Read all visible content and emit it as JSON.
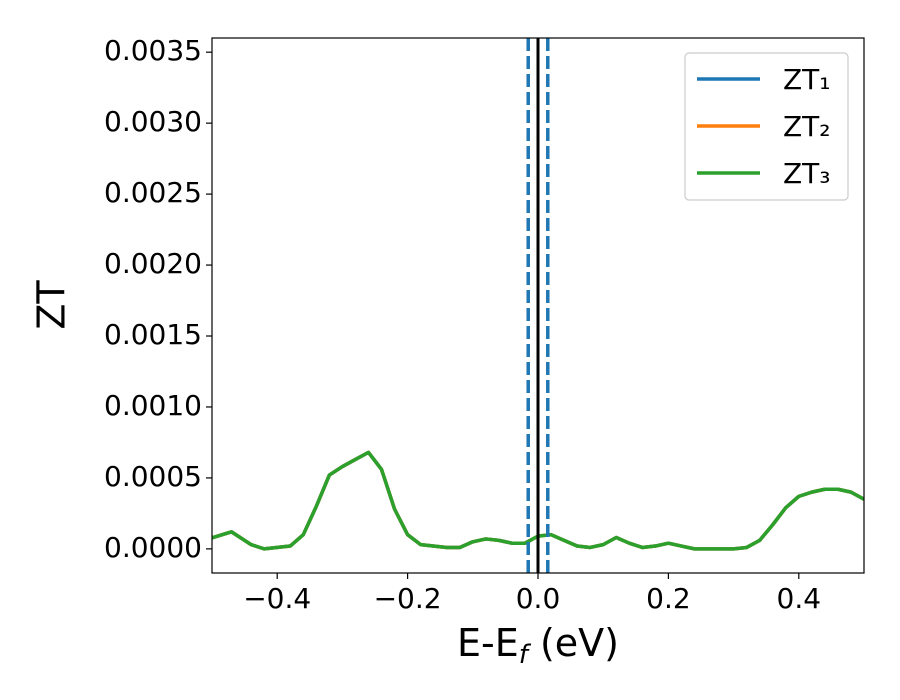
{
  "chart_data": {
    "type": "line",
    "xlabel": [
      "E-E",
      "f",
      " (eV)"
    ],
    "ylabel": "ZT",
    "x": [
      -0.5,
      -0.47,
      -0.44,
      -0.42,
      -0.38,
      -0.36,
      -0.34,
      -0.32,
      -0.3,
      -0.28,
      -0.26,
      -0.24,
      -0.22,
      -0.2,
      -0.18,
      -0.14,
      -0.12,
      -0.1,
      -0.08,
      -0.06,
      -0.04,
      -0.02,
      0.0,
      0.02,
      0.04,
      0.06,
      0.08,
      0.1,
      0.12,
      0.14,
      0.16,
      0.18,
      0.2,
      0.22,
      0.24,
      0.3,
      0.32,
      0.34,
      0.36,
      0.38,
      0.4,
      0.42,
      0.44,
      0.46,
      0.48,
      0.5
    ],
    "series": [
      {
        "name": "ZT₁",
        "color": "#1f77b4",
        "values": [
          7.8e-05,
          0.00012,
          3e-05,
          0.0,
          2e-05,
          0.0001,
          0.0003,
          0.00052,
          0.00058,
          0.00063,
          0.00068,
          0.00056,
          0.00028,
          0.0001,
          3e-05,
          1e-05,
          1e-05,
          5e-05,
          7e-05,
          6e-05,
          4e-05,
          4e-05,
          9e-05,
          0.0001,
          6e-05,
          2e-05,
          1e-05,
          3e-05,
          8e-05,
          4e-05,
          1e-05,
          2e-05,
          4e-05,
          2e-05,
          0.0,
          0.0,
          1e-05,
          6e-05,
          0.00017,
          0.00029,
          0.00037,
          0.0004,
          0.00042,
          0.00042,
          0.0004,
          0.00035
        ]
      },
      {
        "name": "ZT₂",
        "color": "#ff7f0e",
        "values": [
          7.8e-05,
          0.00012,
          3e-05,
          0.0,
          2e-05,
          0.0001,
          0.0003,
          0.00052,
          0.00058,
          0.00063,
          0.00068,
          0.00056,
          0.00028,
          0.0001,
          3e-05,
          1e-05,
          1e-05,
          5e-05,
          7e-05,
          6e-05,
          4e-05,
          4e-05,
          9e-05,
          0.0001,
          6e-05,
          2e-05,
          1e-05,
          3e-05,
          8e-05,
          4e-05,
          1e-05,
          2e-05,
          4e-05,
          2e-05,
          0.0,
          0.0,
          1e-05,
          6e-05,
          0.00017,
          0.00029,
          0.00037,
          0.0004,
          0.00042,
          0.00042,
          0.0004,
          0.00035
        ]
      },
      {
        "name": "ZT₃",
        "color": "#2ca02c",
        "values": [
          7.8e-05,
          0.00012,
          3e-05,
          0.0,
          2e-05,
          0.0001,
          0.0003,
          0.00052,
          0.00058,
          0.00063,
          0.00068,
          0.00056,
          0.00028,
          0.0001,
          3e-05,
          1e-05,
          1e-05,
          5e-05,
          7e-05,
          6e-05,
          4e-05,
          4e-05,
          9e-05,
          0.0001,
          6e-05,
          2e-05,
          1e-05,
          3e-05,
          8e-05,
          4e-05,
          1e-05,
          2e-05,
          4e-05,
          2e-05,
          0.0,
          0.0,
          1e-05,
          6e-05,
          0.00017,
          0.00029,
          0.00037,
          0.0004,
          0.00042,
          0.00042,
          0.0004,
          0.00035
        ]
      }
    ],
    "vlines": [
      {
        "x": -0.015,
        "color": "#1f77b4",
        "dashed": true
      },
      {
        "x": 0.015,
        "color": "#1f77b4",
        "dashed": true
      },
      {
        "x": 0.0,
        "color": "#000000",
        "dashed": false
      }
    ],
    "xlim": [
      -0.5,
      0.5
    ],
    "ylim": [
      -0.00017,
      0.0036
    ],
    "xticks": [
      {
        "value": -0.4,
        "label": "−0.4"
      },
      {
        "value": -0.2,
        "label": "−0.2"
      },
      {
        "value": 0.0,
        "label": "0.0"
      },
      {
        "value": 0.2,
        "label": "0.2"
      },
      {
        "value": 0.4,
        "label": "0.4"
      }
    ],
    "yticks": [
      {
        "value": 0.0,
        "label": "0.0000"
      },
      {
        "value": 0.0005,
        "label": "0.0005"
      },
      {
        "value": 0.001,
        "label": "0.0010"
      },
      {
        "value": 0.0015,
        "label": "0.0015"
      },
      {
        "value": 0.002,
        "label": "0.0020"
      },
      {
        "value": 0.0025,
        "label": "0.0025"
      },
      {
        "value": 0.003,
        "label": "0.0030"
      },
      {
        "value": 0.0035,
        "label": "0.0035"
      }
    ],
    "legend": "upper right",
    "grid": false
  }
}
